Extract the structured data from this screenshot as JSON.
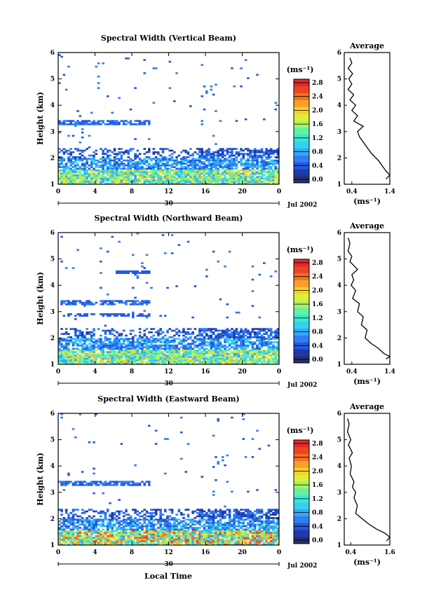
{
  "figure": {
    "xlabel_bottom": "Local Time",
    "day_label": "30",
    "date_label": "Jul 2002"
  },
  "colorbar": {
    "unit_label": "(ms⁻¹)",
    "ticks": [
      "0.0",
      "0.4",
      "0.8",
      "1.2",
      "1.6",
      "2.0",
      "2.4",
      "2.8"
    ],
    "colors": [
      "#2a2e6e",
      "#2038a8",
      "#2358e0",
      "#2f7ef2",
      "#34a8f4",
      "#34d0f0",
      "#3ce8d2",
      "#66f0a6",
      "#a6f266",
      "#dcf038",
      "#f6d02a",
      "#f8a028",
      "#f47024",
      "#ec4424",
      "#e02a2a"
    ]
  },
  "chart_data": [
    {
      "type": "heatmap",
      "title": "Spectral Width (Vertical Beam)",
      "ylabel": "Height (km)",
      "xlim": [
        0,
        24
      ],
      "ylim": [
        1,
        6
      ],
      "xticks": [
        "0",
        "4",
        "8",
        "12",
        "16",
        "20",
        "0"
      ],
      "yticks": [
        "1",
        "2",
        "3",
        "4",
        "5",
        "6"
      ],
      "colorbar_range": [
        0.0,
        3.0
      ]
    },
    {
      "type": "line",
      "title": "Average",
      "xlabel": "(ms⁻¹)",
      "xlim": [
        0.2,
        1.4
      ],
      "ylim": [
        1,
        6
      ],
      "xticks": [
        "0.4",
        "1.4"
      ],
      "yticks": [
        "1",
        "2",
        "3",
        "4",
        "5",
        "6"
      ],
      "x": [
        0.35,
        0.4,
        0.3,
        0.42,
        0.32,
        0.4,
        0.3,
        0.45,
        0.35,
        0.5,
        0.4,
        0.55,
        0.45,
        0.7,
        0.55,
        0.6,
        0.75,
        0.9,
        1.1,
        1.2,
        1.3,
        1.4,
        1.3
      ],
      "y": [
        5.8,
        5.6,
        5.4,
        5.2,
        5.0,
        4.8,
        4.6,
        4.4,
        4.2,
        4.0,
        3.8,
        3.6,
        3.4,
        3.2,
        3.0,
        2.8,
        2.5,
        2.2,
        1.9,
        1.7,
        1.5,
        1.35,
        1.2
      ]
    },
    {
      "type": "heatmap",
      "title": "Spectral Width (Northward Beam)",
      "ylabel": "Height (km)",
      "xlim": [
        0,
        24
      ],
      "ylim": [
        1,
        6
      ],
      "xticks": [
        "0",
        "4",
        "8",
        "12",
        "16",
        "20",
        "0"
      ],
      "yticks": [
        "1",
        "2",
        "3",
        "4",
        "5",
        "6"
      ],
      "colorbar_range": [
        0.0,
        3.0
      ]
    },
    {
      "type": "line",
      "title": "Average",
      "xlabel": "(ms⁻¹)",
      "xlim": [
        0.2,
        1.4
      ],
      "ylim": [
        1,
        6
      ],
      "xticks": [
        "0.4",
        "1.4"
      ],
      "yticks": [
        "1",
        "2",
        "3",
        "4",
        "5",
        "6"
      ],
      "x": [
        0.3,
        0.35,
        0.3,
        0.4,
        0.35,
        0.55,
        0.4,
        0.45,
        0.38,
        0.5,
        0.42,
        0.6,
        0.55,
        0.7,
        0.65,
        0.8,
        0.75,
        0.9,
        1.1,
        1.25,
        1.4,
        1.3
      ],
      "y": [
        5.8,
        5.6,
        5.3,
        5.1,
        4.9,
        4.6,
        4.4,
        4.2,
        4.0,
        3.8,
        3.5,
        3.3,
        3.0,
        2.8,
        2.5,
        2.3,
        2.0,
        1.8,
        1.6,
        1.4,
        1.3,
        1.2
      ]
    },
    {
      "type": "heatmap",
      "title": "Spectral Width (Eastward Beam)",
      "ylabel": "Height (km)",
      "xlim": [
        0,
        24
      ],
      "ylim": [
        1,
        6
      ],
      "xticks": [
        "0",
        "4",
        "8",
        "12",
        "16",
        "20",
        "0"
      ],
      "yticks": [
        "1",
        "2",
        "3",
        "4",
        "5",
        "6"
      ],
      "colorbar_range": [
        0.0,
        3.0
      ]
    },
    {
      "type": "line",
      "title": "Average",
      "xlabel": "(ms⁻¹)",
      "xlim": [
        0.2,
        1.6
      ],
      "ylim": [
        1,
        6
      ],
      "xticks": [
        "0.4",
        "1.6"
      ],
      "yticks": [
        "1",
        "2",
        "3",
        "4",
        "5",
        "6"
      ],
      "x": [
        0.3,
        0.35,
        0.3,
        0.4,
        0.33,
        0.45,
        0.35,
        0.42,
        0.38,
        0.5,
        0.45,
        0.55,
        0.5,
        0.6,
        0.55,
        0.75,
        0.95,
        1.2,
        1.45,
        1.6,
        1.5
      ],
      "y": [
        5.8,
        5.6,
        5.3,
        5.0,
        4.8,
        4.5,
        4.3,
        4.0,
        3.7,
        3.4,
        3.2,
        3.0,
        2.8,
        2.5,
        2.2,
        2.0,
        1.8,
        1.6,
        1.45,
        1.3,
        1.15
      ]
    }
  ]
}
